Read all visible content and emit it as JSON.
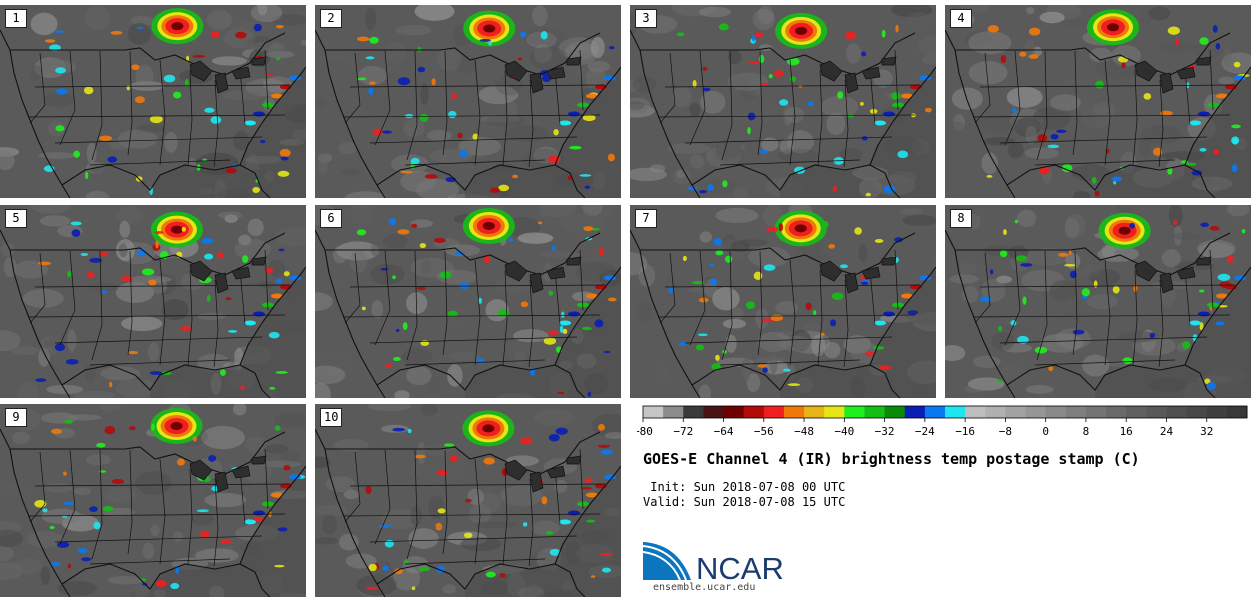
{
  "panels": [
    {
      "label": "1"
    },
    {
      "label": "2"
    },
    {
      "label": "3"
    },
    {
      "label": "4"
    },
    {
      "label": "5"
    },
    {
      "label": "6"
    },
    {
      "label": "7"
    },
    {
      "label": "8"
    },
    {
      "label": "9"
    },
    {
      "label": "10"
    }
  ],
  "colorbar": {
    "min": -80,
    "max": 40,
    "colors": [
      "#c6c6c6",
      "#8c8c8c",
      "#3a3a3a",
      "#4a1414",
      "#6e0000",
      "#b40a0a",
      "#f01e1e",
      "#f0780a",
      "#e6b414",
      "#e6e614",
      "#1ef01e",
      "#14be14",
      "#0a8c0a",
      "#0a1eb4",
      "#0a78f0",
      "#1ee6f0",
      "#bebebe",
      "#b0b0b0",
      "#a2a2a2",
      "#969696",
      "#8a8a8a",
      "#7e7e7e",
      "#747474",
      "#6a6a6a",
      "#606060",
      "#585858",
      "#505050",
      "#484848",
      "#404040",
      "#383838"
    ],
    "ticks": [
      "-80",
      "-72",
      "-64",
      "-56",
      "-48",
      "-40",
      "-32",
      "-24",
      "-16",
      "-8",
      "0",
      "8",
      "16",
      "24",
      "32"
    ]
  },
  "title": "GOES-E Channel 4 (IR) brightness temp postage stamp (C)",
  "init_text": " Init: Sun 2018-07-08 00 UTC",
  "valid_text": "Valid: Sun 2018-07-08 15 UTC",
  "logo_text": "NCAR",
  "url": "ensemble.ucar.edu"
}
